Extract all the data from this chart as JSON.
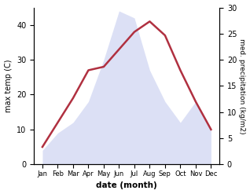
{
  "months": [
    "Jan",
    "Feb",
    "Mar",
    "Apr",
    "May",
    "Jun",
    "Jul",
    "Aug",
    "Sep",
    "Oct",
    "Nov",
    "Dec"
  ],
  "temperature": [
    5,
    12,
    19,
    27,
    28,
    33,
    38,
    41,
    37,
    27,
    18,
    10
  ],
  "precipitation_raw": [
    4,
    9,
    12,
    18,
    30,
    44,
    42,
    27,
    18,
    12,
    18,
    10
  ],
  "temp_color": "#b03040",
  "precip_fill_color": "#c0c8ee",
  "temp_ylim": [
    0,
    45
  ],
  "precip_ylim": [
    0,
    30
  ],
  "temp_yticks": [
    0,
    10,
    20,
    30,
    40
  ],
  "precip_yticks": [
    0,
    5,
    10,
    15,
    20,
    25,
    30
  ],
  "ylabel_left": "max temp (C)",
  "ylabel_right": "med. precipitation (kg/m2)",
  "xlabel": "date (month)",
  "figsize": [
    3.18,
    2.47
  ],
  "dpi": 100
}
